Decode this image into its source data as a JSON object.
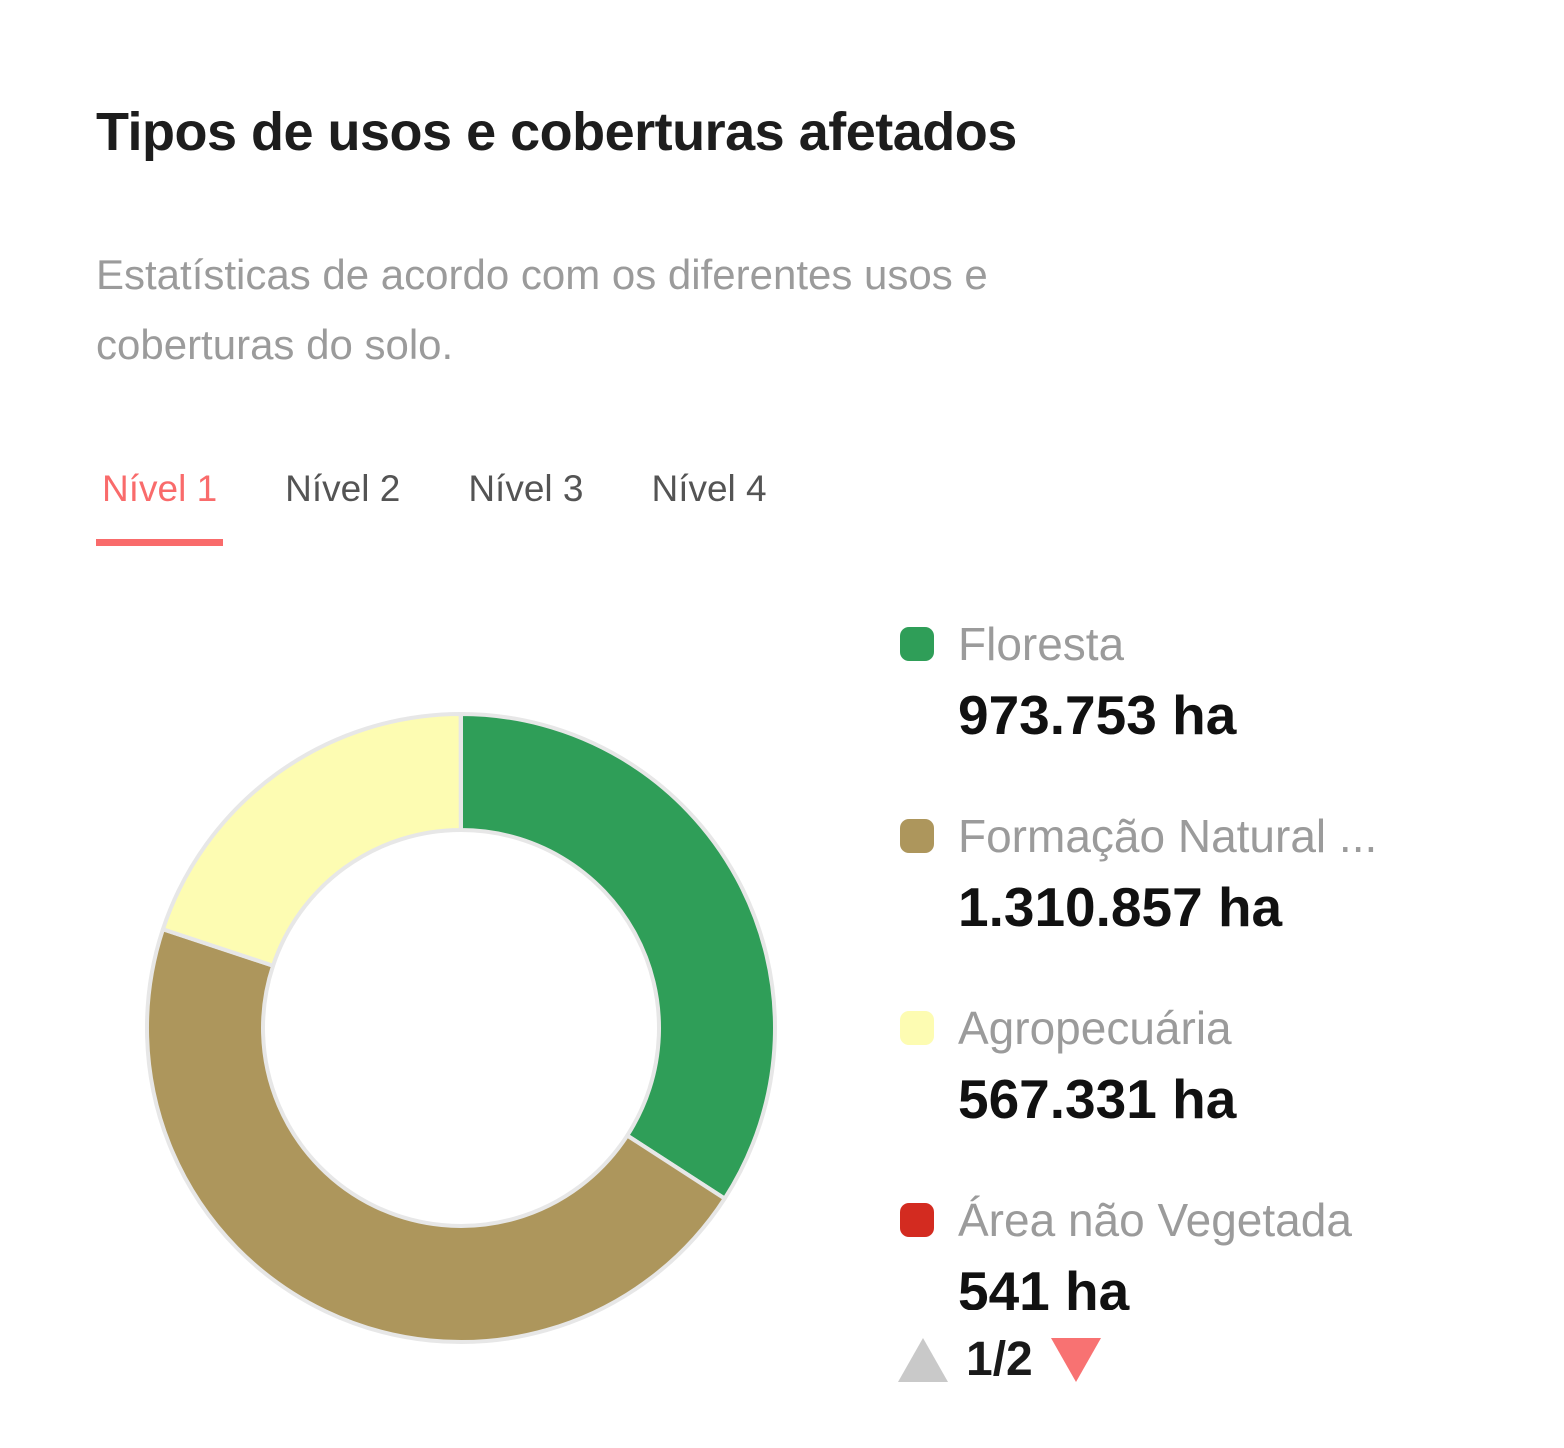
{
  "header": {
    "title": "Tipos de usos e coberturas afetados",
    "subtitle": "Estatísticas de acordo com os diferentes usos e coberturas do solo."
  },
  "tabs": [
    {
      "label": "Nível 1",
      "active": true
    },
    {
      "label": "Nível 2",
      "active": false
    },
    {
      "label": "Nível 3",
      "active": false
    },
    {
      "label": "Nível 4",
      "active": false
    }
  ],
  "chart_data": {
    "type": "pie",
    "subtype": "donut",
    "title": "Tipos de usos e coberturas afetados",
    "unit": "ha",
    "categories": [
      "Floresta",
      "Formação Natural ...",
      "Agropecuária",
      "Área não Vegetada"
    ],
    "values": [
      973753,
      1310857,
      567331,
      541
    ],
    "value_labels": [
      "973.753 ha",
      "1.310.857 ha",
      "567.331 ha",
      "541 ha"
    ],
    "colors": [
      "#2f9e58",
      "#ad965c",
      "#fdfcb2",
      "#d32b20"
    ],
    "start_angle_deg": 0,
    "direction": "clockwise",
    "inner_radius_ratio": 0.63,
    "legend_position": "right",
    "segment_border_color": "#e7e7e7"
  },
  "legend": {
    "items": [
      {
        "label": "Floresta",
        "value": "973.753 ha",
        "color": "#2f9e58"
      },
      {
        "label": "Formação Natural ...",
        "value": "1.310.857 ha",
        "color": "#ad965c"
      },
      {
        "label": "Agropecuária",
        "value": "567.331 ha",
        "color": "#fdfcb2"
      },
      {
        "label": "Área não Vegetada",
        "value": "541 ha",
        "color": "#d32b20"
      }
    ],
    "pagination": {
      "label": "1/2",
      "prev_enabled": false,
      "next_enabled": true,
      "prev_color": "#c9c9c9",
      "next_color": "#f87272"
    }
  },
  "colors": {
    "accent": "#f96b6b",
    "title_text": "#1d1d1d",
    "muted_text": "#9b9b9b",
    "tab_inactive": "#545454",
    "value_text": "#111111",
    "background": "#ffffff"
  }
}
